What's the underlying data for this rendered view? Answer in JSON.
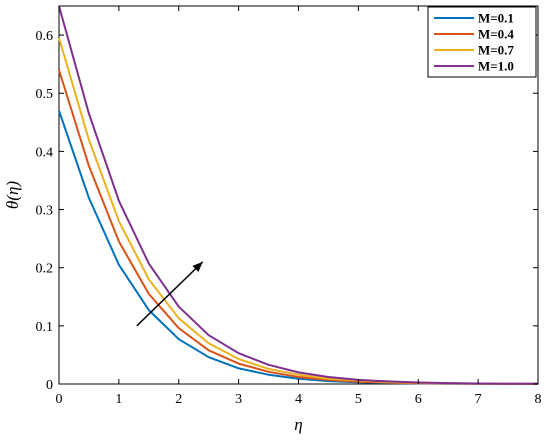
{
  "chart_data": {
    "type": "line",
    "xlabel": "η",
    "ylabel": "θ(η)",
    "xlim": [
      0,
      8
    ],
    "ylim": [
      0,
      0.65
    ],
    "x_ticks": [
      "0",
      "1",
      "2",
      "3",
      "4",
      "5",
      "6",
      "7",
      "8"
    ],
    "y_ticks": [
      "0",
      "0.1",
      "0.2",
      "0.3",
      "0.4",
      "0.5",
      "0.6"
    ],
    "grid": false,
    "legend_position": "top-right",
    "x": [
      0,
      0.5,
      1,
      1.5,
      2,
      2.5,
      3,
      3.5,
      4,
      4.5,
      5,
      5.5,
      6,
      6.5,
      7,
      7.5,
      8
    ],
    "series": [
      {
        "name": "M=0.1",
        "color": "#0072BD",
        "values": [
          0.47,
          0.32,
          0.205,
          0.127,
          0.077,
          0.046,
          0.027,
          0.016,
          0.009,
          0.005,
          0.003,
          0.0017,
          0.001,
          0.0006,
          0.0003,
          0.0002,
          0.0001
        ]
      },
      {
        "name": "M=0.4",
        "color": "#D95319",
        "values": [
          0.54,
          0.375,
          0.245,
          0.155,
          0.096,
          0.058,
          0.035,
          0.021,
          0.012,
          0.007,
          0.004,
          0.0024,
          0.0014,
          0.0008,
          0.0005,
          0.0003,
          0.0002
        ]
      },
      {
        "name": "M=0.7",
        "color": "#EDB120",
        "values": [
          0.595,
          0.42,
          0.28,
          0.18,
          0.113,
          0.07,
          0.043,
          0.026,
          0.016,
          0.009,
          0.006,
          0.0034,
          0.002,
          0.0012,
          0.0007,
          0.0004,
          0.0003
        ]
      },
      {
        "name": "M=1.0",
        "color": "#7E2F8E",
        "values": [
          0.65,
          0.465,
          0.315,
          0.207,
          0.133,
          0.084,
          0.053,
          0.033,
          0.02,
          0.012,
          0.007,
          0.0044,
          0.0026,
          0.0016,
          0.0009,
          0.0006,
          0.0004
        ]
      }
    ],
    "annotation": {
      "type": "arrow",
      "from": [
        1.3,
        0.1
      ],
      "to": [
        2.4,
        0.21
      ]
    }
  }
}
